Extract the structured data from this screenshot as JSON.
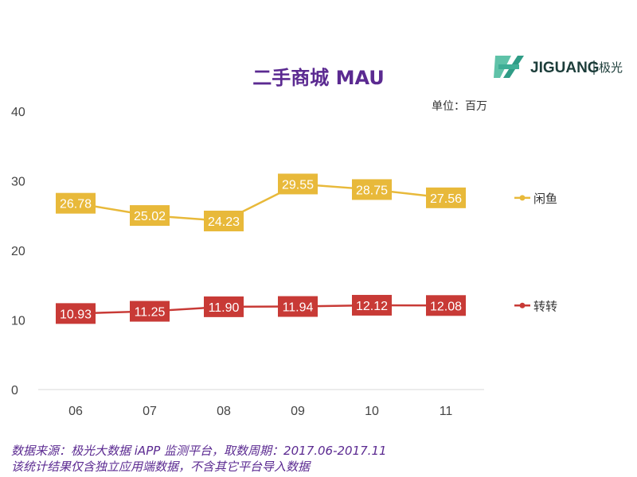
{
  "logo": {
    "brand": "JIGUANG",
    "cn": "极光"
  },
  "chart_data": {
    "type": "line",
    "title": "二手商城 MAU",
    "unit": "单位：百万",
    "categories": [
      "06",
      "07",
      "08",
      "09",
      "10",
      "11"
    ],
    "ylim": [
      0,
      40
    ],
    "yticks": [
      "0",
      "10",
      "20",
      "30",
      "40"
    ],
    "legend_position": "right",
    "series": [
      {
        "name": "闲鱼",
        "color": "#e8b93a",
        "values": [
          26.78,
          25.02,
          24.23,
          29.55,
          28.75,
          27.56
        ],
        "labels": [
          "26.78",
          "25.02",
          "24.23",
          "29.55",
          "28.75",
          "27.56"
        ]
      },
      {
        "name": "转转",
        "color": "#c83a36",
        "values": [
          10.93,
          11.25,
          11.9,
          11.94,
          12.12,
          12.08
        ],
        "labels": [
          "10.93",
          "11.25",
          "11.90",
          "11.94",
          "12.12",
          "12.08"
        ]
      }
    ]
  },
  "footnote": {
    "line1": "数据来源：极光大数据 iAPP 监测平台，取数周期：2017.06-2017.11",
    "line2": "该统计结果仅含独立应用端数据，不含其它平台导入数据"
  }
}
